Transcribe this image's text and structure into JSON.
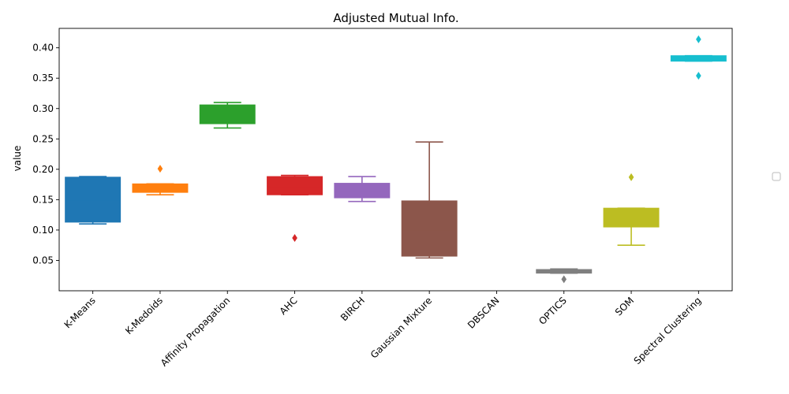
{
  "chart_data": {
    "type": "box",
    "title": "Adjusted Mutual Info.",
    "xlabel": "",
    "ylabel": "value",
    "ylim": [
      0.0,
      0.432
    ],
    "yticks": [
      "0.05",
      "0.10",
      "0.15",
      "0.20",
      "0.25",
      "0.30",
      "0.35",
      "0.40"
    ],
    "ytick_values": [
      0.05,
      0.1,
      0.15,
      0.2,
      0.25,
      0.3,
      0.35,
      0.4
    ],
    "legend": "right (empty)",
    "categories": [
      "K-Means",
      "K-Medoids",
      "Affinity Propagation",
      "AHC",
      "BIRCH",
      "Gaussian Mixture",
      "DBSCAN",
      "OPTICS",
      "SOM",
      "Spectral Clustering"
    ],
    "boxes": [
      {
        "name": "K-Means",
        "color": "#1f77b4",
        "whisker_low": 0.11,
        "q1": 0.113,
        "median": 0.15,
        "q3": 0.187,
        "whisker_high": 0.188,
        "fliers": []
      },
      {
        "name": "K-Medoids",
        "color": "#ff7f0e",
        "whisker_low": 0.158,
        "q1": 0.162,
        "median": 0.167,
        "q3": 0.176,
        "whisker_high": 0.176,
        "fliers": [
          0.201
        ]
      },
      {
        "name": "Affinity Propagation",
        "color": "#2ca02c",
        "whisker_low": 0.268,
        "q1": 0.275,
        "median": 0.292,
        "q3": 0.306,
        "whisker_high": 0.31,
        "fliers": []
      },
      {
        "name": "AHC",
        "color": "#d62728",
        "whisker_low": 0.158,
        "q1": 0.158,
        "median": 0.17,
        "q3": 0.188,
        "whisker_high": 0.19,
        "fliers": [
          0.087
        ]
      },
      {
        "name": "BIRCH",
        "color": "#9467bd",
        "whisker_low": 0.147,
        "q1": 0.153,
        "median": 0.165,
        "q3": 0.177,
        "whisker_high": 0.188,
        "fliers": []
      },
      {
        "name": "Gaussian Mixture",
        "color": "#8c564b",
        "whisker_low": 0.054,
        "q1": 0.057,
        "median": 0.1,
        "q3": 0.148,
        "whisker_high": 0.245,
        "fliers": []
      },
      {
        "name": "DBSCAN",
        "color": "#e377c2",
        "whisker_low": null,
        "q1": null,
        "median": null,
        "q3": null,
        "whisker_high": null,
        "fliers": []
      },
      {
        "name": "OPTICS",
        "color": "#7f7f7f",
        "whisker_low": 0.029,
        "q1": 0.029,
        "median": 0.032,
        "q3": 0.035,
        "whisker_high": 0.036,
        "fliers": [
          0.019
        ]
      },
      {
        "name": "SOM",
        "color": "#bcbd22",
        "whisker_low": 0.075,
        "q1": 0.105,
        "median": 0.12,
        "q3": 0.136,
        "whisker_high": 0.136,
        "fliers": [
          0.187
        ]
      },
      {
        "name": "Spectral Clustering",
        "color": "#17becf",
        "whisker_low": 0.378,
        "q1": 0.378,
        "median": 0.382,
        "q3": 0.387,
        "whisker_high": 0.387,
        "fliers": [
          0.414,
          0.354
        ]
      }
    ]
  }
}
